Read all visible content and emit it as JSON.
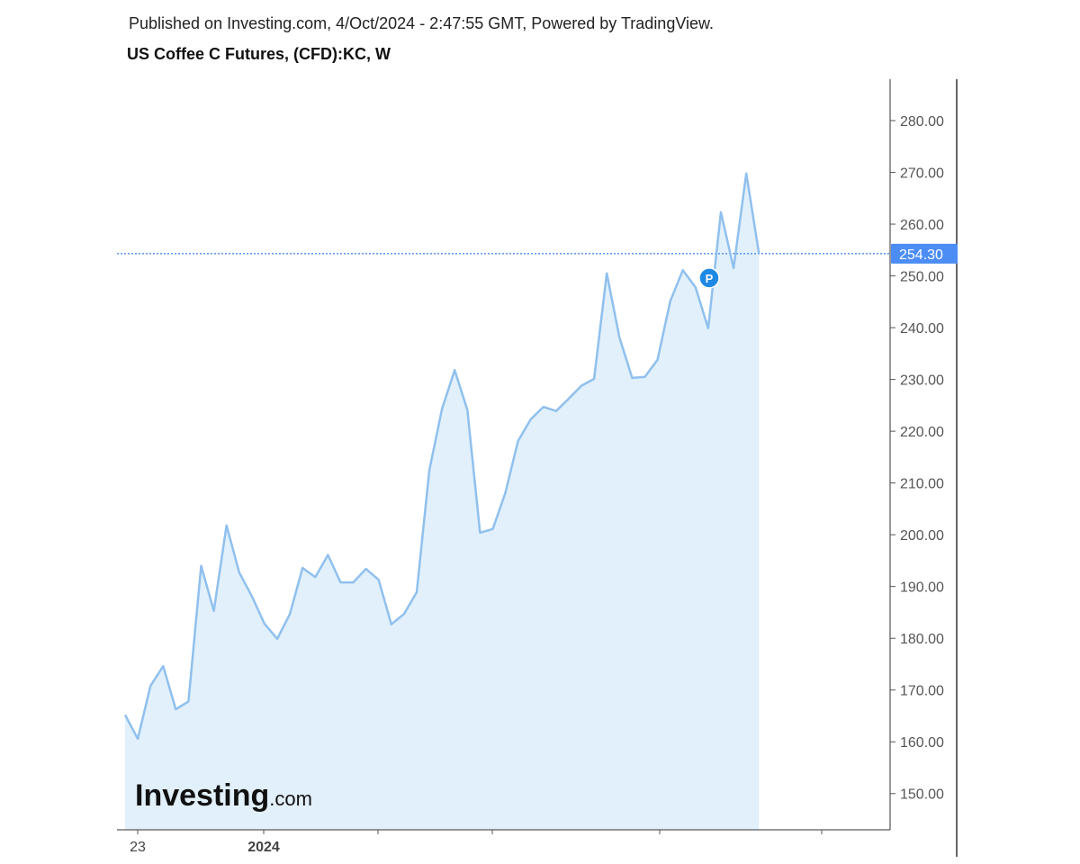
{
  "header": {
    "published": "Published on Investing.com, 4/Oct/2024 - 2:47:55 GMT, Powered by TradingView.",
    "chart_title": "US Coffee C Futures, (CFD):KC, W"
  },
  "colors": {
    "line": "#90c0ee",
    "fill": "#e1f0fa",
    "price_label_bg": "#4b8cf5",
    "price_line": "#4b8cf5",
    "marker": "#1e88e5"
  },
  "logo": {
    "main": "Investing",
    "suffix": ".com"
  },
  "marker": {
    "label": "P"
  },
  "chart_data": {
    "type": "area",
    "title": "US Coffee C Futures, (CFD):KC, W",
    "ylim": [
      143,
      288
    ],
    "y_ticks": [
      "280.00",
      "270.00",
      "260.00",
      "250.00",
      "240.00",
      "230.00",
      "220.00",
      "210.00",
      "200.00",
      "190.00",
      "180.00",
      "170.00",
      "160.00",
      "150.00"
    ],
    "x_tick_labels": [
      "23",
      "2024",
      "",
      "",
      "",
      ""
    ],
    "last_price": 254.3,
    "last_price_label": "254.30",
    "grid": false,
    "series": [
      {
        "values": [
          165.2,
          160.6,
          170.8,
          174.6,
          166.3,
          167.8,
          194.0,
          185.3,
          201.8,
          192.7,
          188.1,
          182.8,
          179.9,
          184.7,
          193.6,
          191.8,
          196.1,
          190.8,
          190.8,
          193.4,
          191.3,
          182.7,
          184.7,
          188.9,
          212.4,
          224.3,
          231.8,
          224.1,
          200.4,
          201.1,
          208.1,
          218.1,
          222.3,
          224.7,
          223.9,
          226.3,
          228.8,
          230.1,
          250.5,
          238.1,
          230.3,
          230.5,
          233.8,
          245.1,
          251.1,
          247.8,
          239.9,
          262.3,
          251.5,
          269.8,
          254.3
        ]
      }
    ]
  }
}
